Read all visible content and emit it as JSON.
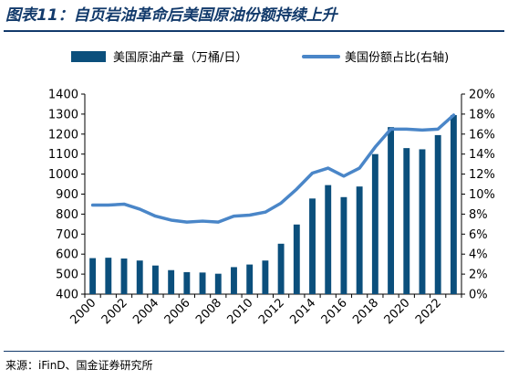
{
  "header": {
    "title": "图表11：自页岩油革命后美国原油份额持续上升"
  },
  "footer": {
    "source": "来源：iFinD、国金证券研究所"
  },
  "colors": {
    "bar": "#0b4f7c",
    "line": "#4a86c8",
    "title": "#123a6b"
  },
  "chart_data": {
    "type": "bar",
    "title": "",
    "xlabel": "",
    "ylabel": "",
    "ylabel_right": "",
    "ylim": [
      400,
      1400
    ],
    "ylim_right": [
      0,
      20
    ],
    "y_ticks": [
      "1400",
      "1300",
      "1200",
      "1100",
      "1000",
      "900",
      "800",
      "700",
      "600",
      "500",
      "400"
    ],
    "y2_ticks": [
      "20%",
      "18%",
      "16%",
      "14%",
      "12%",
      "10%",
      "8%",
      "6%",
      "4%",
      "2%",
      "0%"
    ],
    "x_tick_labels": [
      "2000",
      "2002",
      "2004",
      "2006",
      "2008",
      "2010",
      "2012",
      "2014",
      "2016",
      "2018",
      "2020",
      "2022"
    ],
    "grid": false,
    "legend_position": "top",
    "categories": [
      "2000",
      "2001",
      "2002",
      "2003",
      "2004",
      "2005",
      "2006",
      "2007",
      "2008",
      "2009",
      "2010",
      "2011",
      "2012",
      "2013",
      "2014",
      "2015",
      "2016",
      "2017",
      "2018",
      "2019",
      "2020",
      "2021",
      "2022",
      "2023"
    ],
    "series": [
      {
        "name": "美国原油产量（万桶/日）",
        "type": "bar",
        "axis": "left",
        "values": [
          580,
          582,
          578,
          568,
          543,
          520,
          510,
          508,
          502,
          535,
          548,
          568,
          652,
          748,
          878,
          945,
          885,
          938,
          1100,
          1235,
          1130,
          1124,
          1195,
          1295
        ]
      },
      {
        "name": "美国份额占比(右轴)",
        "type": "line",
        "axis": "right",
        "values": [
          8.9,
          8.9,
          9.0,
          8.5,
          7.8,
          7.4,
          7.2,
          7.3,
          7.2,
          7.8,
          7.9,
          8.2,
          9.1,
          10.5,
          12.1,
          12.6,
          11.8,
          12.6,
          14.7,
          16.5,
          16.5,
          16.4,
          16.5,
          17.9
        ]
      }
    ]
  }
}
